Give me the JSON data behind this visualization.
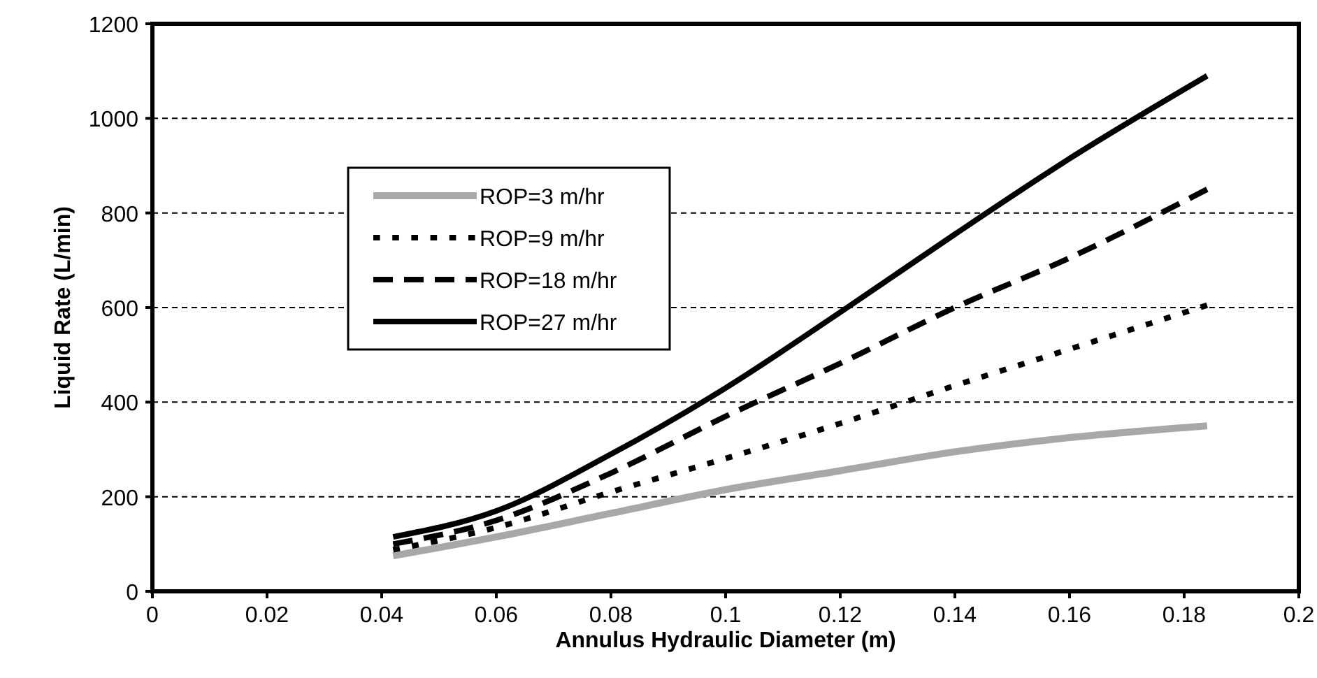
{
  "chart_data": {
    "type": "line",
    "xlabel": "Annulus Hydraulic Diameter (m)",
    "ylabel": "Liquid Rate (L/min)",
    "xlim": [
      0,
      0.2
    ],
    "xticks": [
      0,
      0.02,
      0.04,
      0.06,
      0.08,
      0.1,
      0.12,
      0.14,
      0.16,
      0.18,
      0.2
    ],
    "ylim": [
      0,
      1200
    ],
    "yticks": [
      0,
      200,
      400,
      600,
      800,
      1000,
      1200
    ],
    "grid": "y",
    "legend": "top left",
    "x": [
      0.042,
      0.06,
      0.08,
      0.1,
      0.12,
      0.14,
      0.16,
      0.184
    ],
    "series": [
      {
        "name": "ROP=3 m/hr",
        "color": "#a8a8a8",
        "line_style": "solid",
        "values": [
          75,
          115,
          165,
          215,
          255,
          295,
          325,
          350
        ]
      },
      {
        "name": "ROP=9 m/hr",
        "color": "#000000",
        "line_style": "dotted",
        "values": [
          88,
          135,
          210,
          281,
          355,
          435,
          512,
          605
        ]
      },
      {
        "name": "ROP=18 m/hr",
        "color": "#000000",
        "line_style": "dashed",
        "values": [
          100,
          150,
          250,
          370,
          482,
          600,
          705,
          850
        ]
      },
      {
        "name": "ROP=27 m/hr",
        "color": "#000000",
        "line_style": "solid",
        "values": [
          115,
          170,
          290,
          430,
          590,
          755,
          915,
          1090
        ]
      }
    ]
  }
}
